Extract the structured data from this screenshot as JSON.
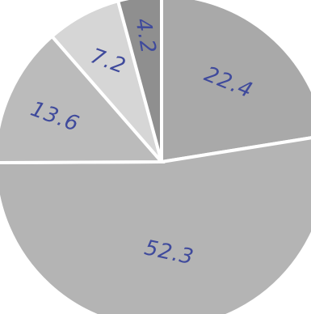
{
  "chart_data": {
    "type": "pie",
    "title": "",
    "slices": [
      {
        "label": "22.4",
        "value": 22.4,
        "color": "#a9a9a9"
      },
      {
        "label": "52.3",
        "value": 52.3,
        "color": "#b4b4b4"
      },
      {
        "label": "13.6",
        "value": 13.6,
        "color": "#bbbbbb"
      },
      {
        "label": "7.2",
        "value": 7.2,
        "color": "#d6d6d6"
      },
      {
        "label": "4.2",
        "value": 4.2,
        "color": "#8f8f8f"
      }
    ],
    "start_angle_deg": 0,
    "direction": "clockwise",
    "legend": "none",
    "data_labels": "on-slice handwritten"
  }
}
